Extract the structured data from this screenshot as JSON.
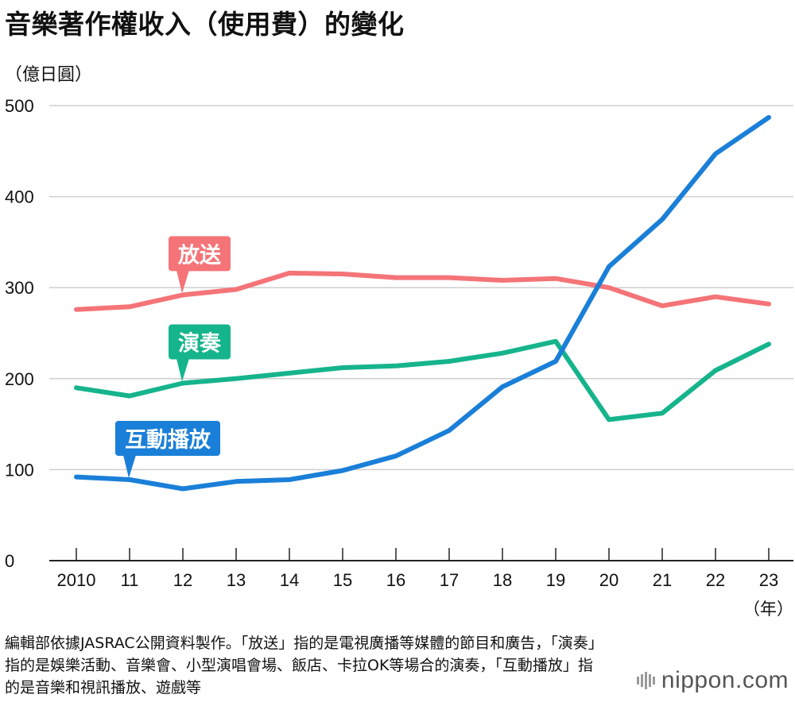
{
  "title": "音樂著作權收入（使用費）的變化",
  "unit_label": "（億日圓）",
  "year_unit": "（年）",
  "note": "編輯部依據JASRAC公開資料製作。「放送」指的是電視廣播等媒體的節目和廣告，「演奏」指的是娛樂活動、音樂會、小型演唱會場、飯店、卡拉OK等場合的演奏，「互動播放」指的是音樂和視訊播放、遊戲等",
  "brand": {
    "text": "nippon.com",
    "icon": "nippon-bars-icon"
  },
  "chart_data": {
    "type": "line",
    "x": [
      "2010",
      "11",
      "12",
      "13",
      "14",
      "15",
      "16",
      "17",
      "18",
      "19",
      "20",
      "21",
      "22",
      "23"
    ],
    "yticks": [
      0,
      100,
      200,
      300,
      400,
      500
    ],
    "ylim": [
      0,
      500
    ],
    "grid": true,
    "series": [
      {
        "name": "放送",
        "color": "#f47478",
        "label_index": 2,
        "values": [
          276,
          279,
          292,
          298,
          316,
          315,
          311,
          311,
          308,
          310,
          300,
          280,
          290,
          282
        ]
      },
      {
        "name": "演奏",
        "color": "#16b48c",
        "label_index": 2,
        "values": [
          190,
          181,
          195,
          200,
          206,
          212,
          214,
          219,
          228,
          241,
          155,
          162,
          209,
          238
        ]
      },
      {
        "name": "互動播放",
        "color": "#1a7fd8",
        "label_index": 1,
        "values": [
          92,
          89,
          79,
          87,
          89,
          99,
          115,
          143,
          191,
          219,
          323,
          375,
          447,
          487
        ]
      }
    ]
  }
}
